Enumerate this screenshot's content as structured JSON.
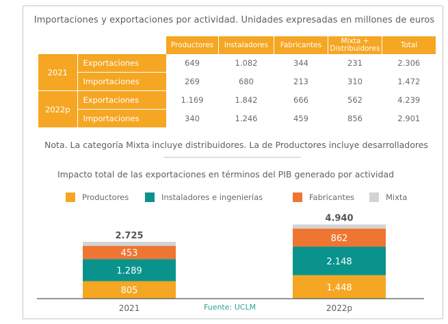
{
  "table": {
    "title": "Importaciones y exportaciones por actividad. Unidades expresadas en millones de euros",
    "columns": [
      "Productores",
      "Instaladores",
      "Fabricantes",
      "Mixta + Distribuidores",
      "Total"
    ],
    "column_lines": [
      [
        "Productores"
      ],
      [
        "Instaladores"
      ],
      [
        "Fabricantes"
      ],
      [
        "Mixta +",
        "Distribuidores"
      ],
      [
        "Total"
      ]
    ],
    "groups": [
      {
        "year": "2021",
        "rows": [
          {
            "label": "Exportaciones",
            "values": [
              "649",
              "1.082",
              "344",
              "231",
              "2.306"
            ]
          },
          {
            "label": "Importaciones",
            "values": [
              "269",
              "680",
              "213",
              "310",
              "1.472"
            ]
          }
        ]
      },
      {
        "year": "2022p",
        "rows": [
          {
            "label": "Exportaciones",
            "values": [
              "1.169",
              "1.842",
              "666",
              "562",
              "4.239"
            ]
          },
          {
            "label": "Importaciones",
            "values": [
              "340",
              "1.246",
              "459",
              "856",
              "2.901"
            ]
          }
        ]
      }
    ],
    "note": "Nota. La categoría Mixta incluye distribuidores. La de Productores incluye desarrolladores"
  },
  "colors": {
    "productores": "#f5a623",
    "instaladores": "#0a938c",
    "fabricantes": "#ef7533",
    "mixta": "#d3d3d3"
  },
  "chart_data": {
    "type": "bar",
    "stacked": true,
    "title": "Impacto total de las exportaciones en términos del PIB generado por actividad",
    "categories": [
      "2021",
      "2022p"
    ],
    "series": [
      {
        "name": "Productores",
        "key": "productores",
        "values": [
          805,
          1448
        ],
        "labels": [
          "805",
          "1.448"
        ]
      },
      {
        "name": "Instaladores e ingenierías",
        "key": "instaladores",
        "values": [
          1289,
          2148
        ],
        "labels": [
          "1.289",
          "2.148"
        ]
      },
      {
        "name": "Fabricantes",
        "key": "fabricantes",
        "values": [
          453,
          862
        ],
        "labels": [
          "453",
          "862"
        ]
      },
      {
        "name": "Mixta",
        "key": "mixta",
        "values": [
          178,
          482
        ],
        "labels": [
          "",
          ""
        ]
      }
    ],
    "totals": [
      2725,
      4940
    ],
    "total_labels": [
      "2.725",
      "4.940"
    ],
    "legend": [
      "Productores",
      "Instaladores e ingenierías",
      "Fabricantes",
      "Mixta"
    ],
    "legend_position": "top",
    "xlabel": "",
    "ylabel": "",
    "grid": false,
    "source": "Fuente: UCLM"
  }
}
